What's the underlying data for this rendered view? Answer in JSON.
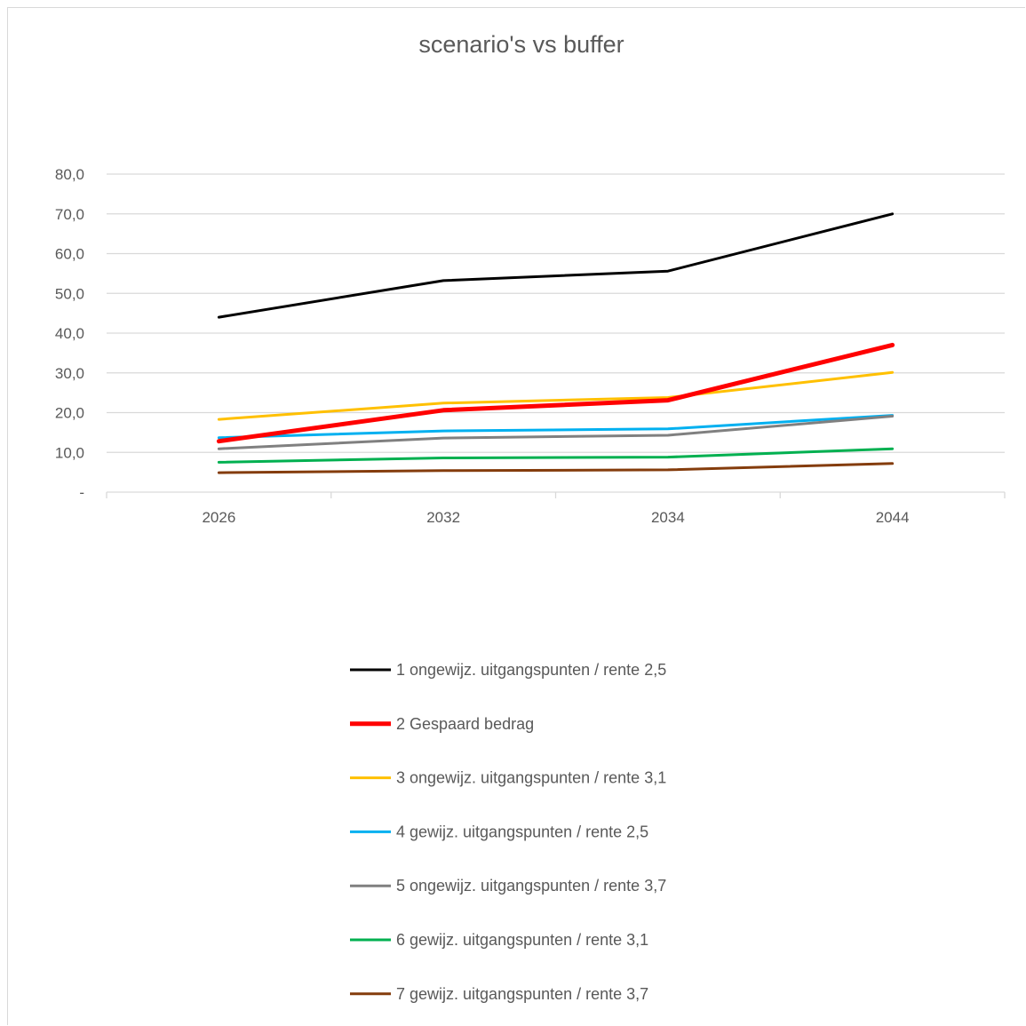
{
  "chart_data": {
    "type": "line",
    "title": "scenario's  vs buffer",
    "xlabel": "",
    "ylabel": "",
    "categories": [
      "2026",
      "2032",
      "2034",
      "2044"
    ],
    "ylim": [
      0,
      80
    ],
    "yticks": [
      {
        "value": 0,
        "label": "-"
      },
      {
        "value": 10,
        "label": "10,0"
      },
      {
        "value": 20,
        "label": "20,0"
      },
      {
        "value": 30,
        "label": "30,0"
      },
      {
        "value": 40,
        "label": "40,0"
      },
      {
        "value": 50,
        "label": "50,0"
      },
      {
        "value": 60,
        "label": "60,0"
      },
      {
        "value": 70,
        "label": "70,0"
      },
      {
        "value": 80,
        "label": "80,0"
      }
    ],
    "grid": true,
    "legend_position": "bottom",
    "series": [
      {
        "name": "1 ongewijz. uitgangspunten / rente 2,5",
        "color": "#000000",
        "values": [
          44.0,
          53.2,
          55.6,
          70.0
        ]
      },
      {
        "name": "2 Gespaard bedrag",
        "color": "#ff0000",
        "values": [
          12.8,
          20.6,
          23.1,
          37.0
        ],
        "bold": true
      },
      {
        "name": "3 ongewijz. uitgangspunten / rente 3,1",
        "color": "#ffc000",
        "values": [
          18.3,
          22.4,
          23.8,
          30.1
        ]
      },
      {
        "name": "4 gewijz. uitgangspunten / rente 2,5",
        "color": "#00b0f0",
        "values": [
          13.7,
          15.4,
          15.9,
          19.3
        ]
      },
      {
        "name": "5 ongewijz. uitgangspunten / rente 3,7",
        "color": "#808080",
        "values": [
          10.9,
          13.6,
          14.3,
          19.1
        ]
      },
      {
        "name": "6 gewijz. uitgangspunten / rente 3,1",
        "color": "#00b050",
        "values": [
          7.5,
          8.6,
          8.8,
          10.9
        ]
      },
      {
        "name": "7 gewijz. uitgangspunten / rente 3,7",
        "color": "#843c0c",
        "values": [
          4.9,
          5.4,
          5.6,
          7.2
        ]
      }
    ]
  }
}
